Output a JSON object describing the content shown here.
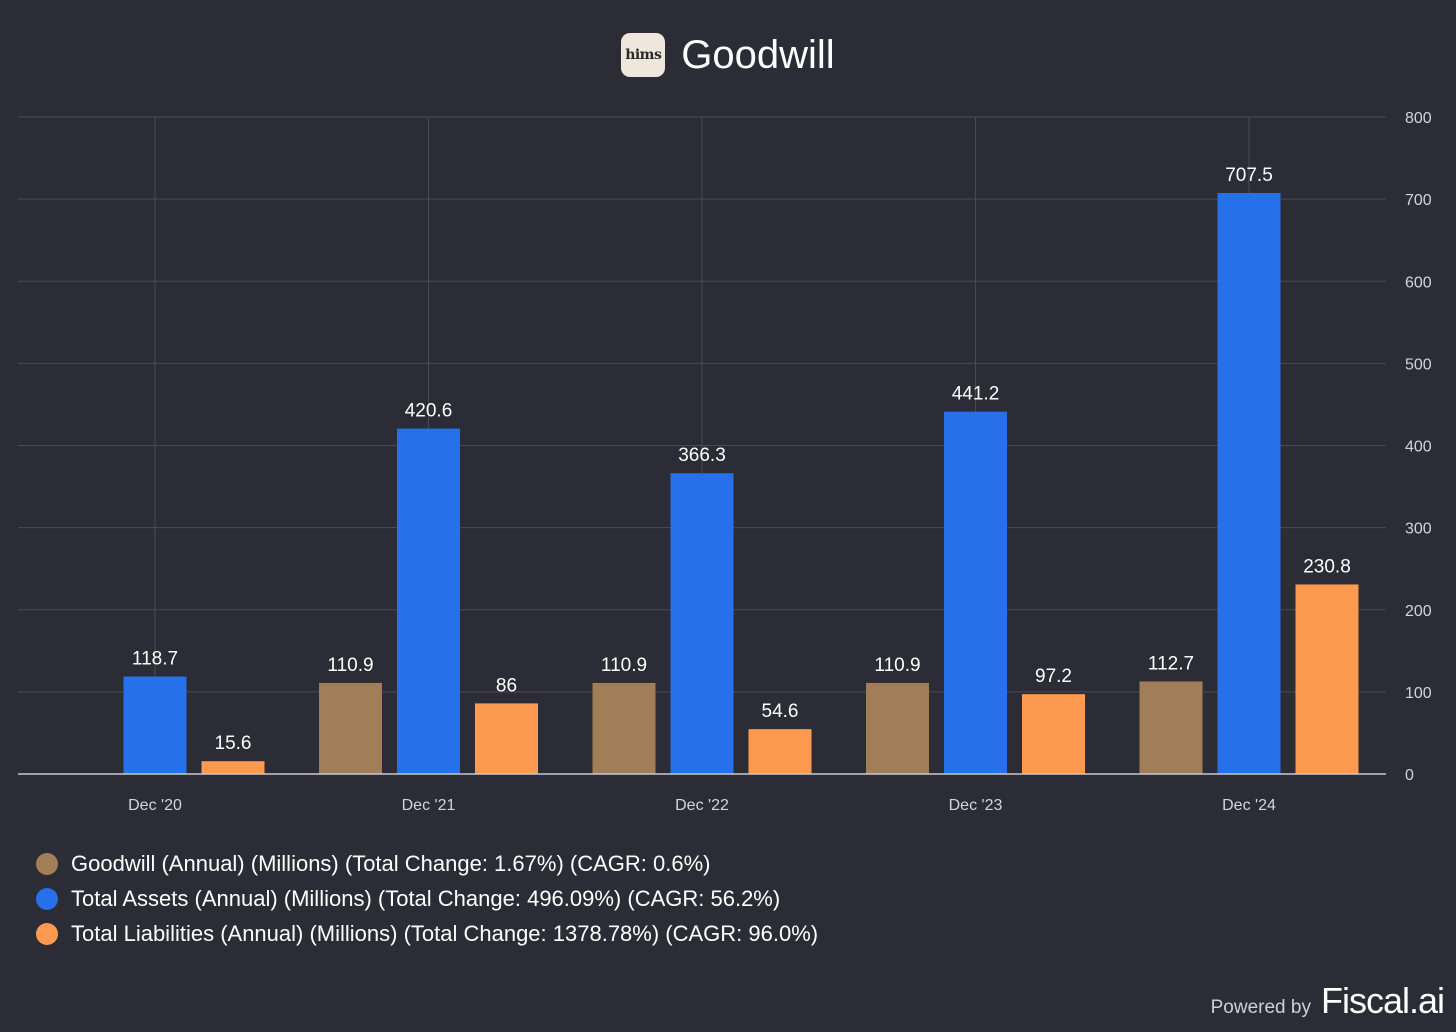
{
  "header": {
    "logo_text": "hims",
    "title": "Goodwill"
  },
  "chart_data": {
    "type": "bar",
    "title": "Goodwill",
    "categories": [
      "Dec '20",
      "Dec '21",
      "Dec '22",
      "Dec '23",
      "Dec '24"
    ],
    "series": [
      {
        "name": "Goodwill (Annual) (Millions) (Total Change: 1.67%) (CAGR: 0.6%)",
        "color": "#a17e58",
        "values": [
          null,
          110.9,
          110.9,
          110.9,
          112.7
        ],
        "labels": [
          "",
          "110.9",
          "110.9",
          "110.9",
          "112.7"
        ]
      },
      {
        "name": "Total Assets (Annual) (Millions) (Total Change: 496.09%) (CAGR: 56.2%)",
        "color": "#2671ea",
        "values": [
          118.7,
          420.6,
          366.3,
          441.2,
          707.5
        ],
        "labels": [
          "118.7",
          "420.6",
          "366.3",
          "441.2",
          "707.5"
        ]
      },
      {
        "name": "Total Liabilities (Annual) (Millions) (Total Change: 1378.78%) (CAGR: 96.0%)",
        "color": "#fd9a4f",
        "values": [
          15.6,
          86,
          54.6,
          97.2,
          230.8
        ],
        "labels": [
          "15.6",
          "86",
          "54.6",
          "97.2",
          "230.8"
        ]
      }
    ],
    "ylim": [
      0,
      800
    ],
    "yticks": [
      "0",
      "100",
      "200",
      "300",
      "400",
      "500",
      "600",
      "700",
      "800"
    ],
    "y_axis_side": "right",
    "grid": true,
    "legend_position": "bottom-left"
  },
  "footer": {
    "powered_by": "Powered by",
    "brand": "Fiscal.ai"
  }
}
